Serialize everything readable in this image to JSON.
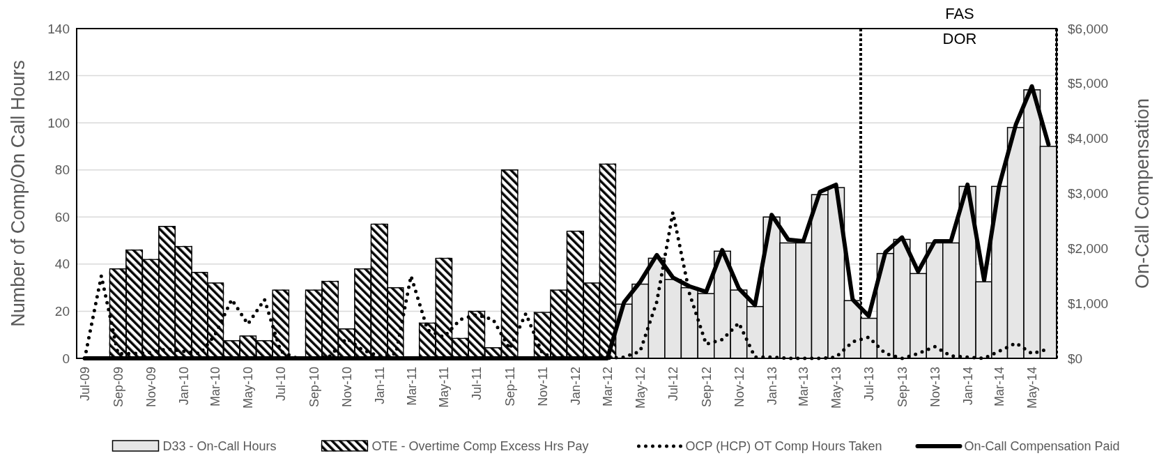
{
  "chart_data": {
    "type": "bar",
    "ylabel": "Number of Comp/On Call Hours",
    "y2label": "On-Call Compensation",
    "x": [
      "2009-07",
      "2009-08",
      "2009-09",
      "2009-10",
      "2009-11",
      "2009-12",
      "2010-01",
      "2010-02",
      "2010-03",
      "2010-04",
      "2010-05",
      "2010-06",
      "2010-07",
      "2010-08",
      "2010-09",
      "2010-10",
      "2010-11",
      "2010-12",
      "2011-01",
      "2011-02",
      "2011-03",
      "2011-04",
      "2011-05",
      "2011-06",
      "2011-07",
      "2011-08",
      "2011-09",
      "2011-10",
      "2011-11",
      "2011-12",
      "2012-01",
      "2012-02",
      "2012-03",
      "2012-04",
      "2012-05",
      "2012-06",
      "2012-07",
      "2012-08",
      "2012-09",
      "2012-10",
      "2012-11",
      "2012-12",
      "2013-01",
      "2013-02",
      "2013-03",
      "2013-04",
      "2013-05",
      "2013-06",
      "2013-07",
      "2013-08",
      "2013-09",
      "2013-10",
      "2013-11",
      "2013-12",
      "2014-01",
      "2014-02",
      "2014-03",
      "2014-04",
      "2014-05",
      "2014-06"
    ],
    "xlim": [
      "2009-06-16",
      "2014-06-16"
    ],
    "xticks": [
      {
        "value": "2009-07",
        "label": "Jul-09"
      },
      {
        "value": "2009-09",
        "label": "Sep-09"
      },
      {
        "value": "2009-11",
        "label": "Nov-09"
      },
      {
        "value": "2010-01",
        "label": "Jan-10"
      },
      {
        "value": "2010-03",
        "label": "Mar-10"
      },
      {
        "value": "2010-05",
        "label": "May-10"
      },
      {
        "value": "2010-07",
        "label": "Jul-10"
      },
      {
        "value": "2010-09",
        "label": "Sep-10"
      },
      {
        "value": "2010-11",
        "label": "Nov-10"
      },
      {
        "value": "2011-01",
        "label": "Jan-11"
      },
      {
        "value": "2011-03",
        "label": "Mar-11"
      },
      {
        "value": "2011-05",
        "label": "May-11"
      },
      {
        "value": "2011-07",
        "label": "Jul-11"
      },
      {
        "value": "2011-09",
        "label": "Sep-11"
      },
      {
        "value": "2011-11",
        "label": "Nov-11"
      },
      {
        "value": "2012-01",
        "label": "Jan-12"
      },
      {
        "value": "2012-03",
        "label": "Mar-12"
      },
      {
        "value": "2012-05",
        "label": "May-12"
      },
      {
        "value": "2012-07",
        "label": "Jul-12"
      },
      {
        "value": "2012-09",
        "label": "Sep-12"
      },
      {
        "value": "2012-11",
        "label": "Nov-12"
      },
      {
        "value": "2013-01",
        "label": "Jan-13"
      },
      {
        "value": "2013-03",
        "label": "Mar-13"
      },
      {
        "value": "2013-05",
        "label": "May-13"
      },
      {
        "value": "2013-07",
        "label": "Jul-13"
      },
      {
        "value": "2013-09",
        "label": "Sep-13"
      },
      {
        "value": "2013-11",
        "label": "Nov-13"
      },
      {
        "value": "2014-01",
        "label": "Jan-14"
      },
      {
        "value": "2014-03",
        "label": "Mar-14"
      },
      {
        "value": "2014-05",
        "label": "May-14"
      }
    ],
    "ylim": [
      0,
      140
    ],
    "yticks": [
      0,
      20,
      40,
      60,
      80,
      100,
      120,
      140
    ],
    "y2lim": [
      0,
      6000
    ],
    "y2ticks": [
      {
        "value": 0,
        "label": "$0"
      },
      {
        "value": 1000,
        "label": "$1,000"
      },
      {
        "value": 2000,
        "label": "$2,000"
      },
      {
        "value": 3000,
        "label": "$3,000"
      },
      {
        "value": 4000,
        "label": "$4,000"
      },
      {
        "value": 5000,
        "label": "$5,000"
      },
      {
        "value": 6000,
        "label": "$6,000"
      }
    ],
    "grid": "y",
    "legend": "bottom",
    "ref_lines": [
      {
        "axis": "x",
        "value": "2013-06-16",
        "line_style": "dotted"
      },
      {
        "axis": "x",
        "value": "2014-06-16",
        "line_style": "dotted"
      }
    ],
    "annotations": [
      "FAS",
      "DOR"
    ],
    "series": [
      {
        "name": "D33 - On-Call Hours",
        "color": "#e6e6e6",
        "values": [
          null,
          null,
          null,
          null,
          null,
          null,
          null,
          null,
          null,
          null,
          null,
          null,
          null,
          null,
          null,
          null,
          null,
          null,
          null,
          null,
          null,
          null,
          null,
          null,
          null,
          null,
          null,
          null,
          null,
          null,
          null,
          null,
          null,
          23,
          31.5,
          42.5,
          33.5,
          30,
          27.5,
          45.5,
          29,
          22,
          60,
          49,
          49,
          69.5,
          72.5,
          24.5,
          17,
          44.5,
          50.5,
          36,
          49,
          49,
          73,
          32.5,
          73,
          98,
          114,
          90
        ]
      },
      {
        "name": "OTE - Overtime Comp Excess Hrs Pay",
        "color": "#000000",
        "values": [
          null,
          null,
          38,
          46,
          42,
          56,
          47.5,
          36.5,
          32,
          7.5,
          9.5,
          7.5,
          29,
          null,
          29,
          32.7,
          12.5,
          38,
          57,
          30,
          null,
          15,
          42.5,
          8.5,
          20,
          4.5,
          80,
          null,
          19.5,
          29,
          54,
          32,
          82.5,
          null,
          null,
          null,
          null,
          null,
          null,
          null,
          null,
          null,
          null,
          null,
          null,
          null,
          null,
          null,
          null,
          null,
          null,
          null,
          null,
          null,
          null,
          null,
          null,
          null,
          null,
          null
        ]
      },
      {
        "name": "OCP (HCP) OT Comp Hours Taken",
        "type": "line",
        "line_style": "dotted",
        "color": "#000000",
        "values": [
          0,
          35,
          2,
          2,
          2.5,
          4,
          3,
          2,
          10,
          25,
          14.5,
          25,
          3,
          0,
          0,
          1,
          8.5,
          3.5,
          1,
          2,
          35,
          12,
          9,
          16.5,
          18.5,
          16.5,
          4,
          19,
          2,
          0,
          0,
          0,
          0,
          0.5,
          3,
          24,
          62,
          27.5,
          6,
          8,
          15,
          0.5,
          0.5,
          0,
          0,
          0,
          0.5,
          7,
          9,
          2,
          0,
          2,
          5,
          1,
          0.5,
          0,
          3,
          6.5,
          2,
          4
        ]
      },
      {
        "name": "On-Call Compensation Paid",
        "type": "line",
        "axis": "y2",
        "line_style": "solid",
        "color": "#000000",
        "values": [
          0,
          0,
          0,
          0,
          0,
          0,
          0,
          0,
          0,
          0,
          0,
          0,
          0,
          0,
          0,
          0,
          0,
          0,
          0,
          0,
          0,
          0,
          0,
          0,
          0,
          0,
          0,
          0,
          0,
          0,
          0,
          0,
          0,
          1020,
          1390,
          1880,
          1470,
          1310,
          1210,
          1970,
          1270,
          970,
          2610,
          2160,
          2130,
          3030,
          3160,
          1070,
          770,
          1930,
          2200,
          1580,
          2130,
          2130,
          3160,
          1420,
          3140,
          4250,
          4950,
          3890
        ]
      }
    ]
  }
}
